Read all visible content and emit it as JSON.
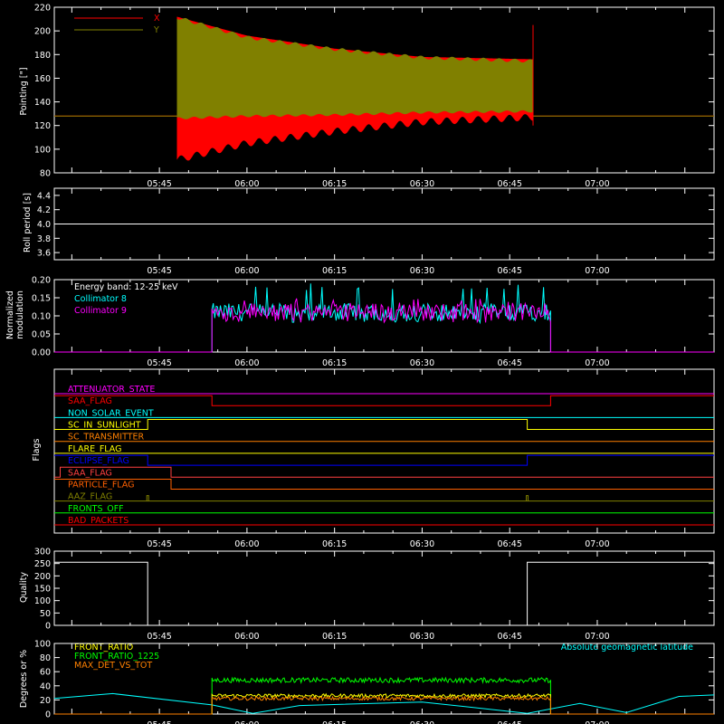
{
  "panels": {
    "pointing": {
      "ylabel": "Pointing [\"]",
      "legend": [
        {
          "label": "X",
          "color": "#ff0000"
        },
        {
          "label": "Y",
          "color": "#808000"
        }
      ]
    },
    "roll": {
      "ylabel": "Roll period [s]"
    },
    "modulation": {
      "ylabel_line1": "Normalized",
      "ylabel_line2": "modulation",
      "annotation": "Energy band: 12-25 keV",
      "legend": [
        {
          "label": "Collimator 8",
          "color": "#00ffff"
        },
        {
          "label": "Collimator 9",
          "color": "#ff00ff"
        }
      ]
    },
    "flags": {
      "ylabel": "Flags"
    },
    "quality": {
      "ylabel": "Quality"
    },
    "ratios": {
      "ylabel": "Degrees or %",
      "legend": [
        {
          "label": "FRONT_RATIO",
          "color": "#ffff00"
        },
        {
          "label": "FRONT_RATIO_1225",
          "color": "#00ff00"
        },
        {
          "label": "MAX_DET_VS_TOT",
          "color": "#ff8000"
        }
      ],
      "right_label": "Absolute geomagnetic latitude",
      "right_label_color": "#00ffff"
    }
  },
  "chart_data": [
    {
      "type": "area",
      "ylabel": "Pointing [\"]",
      "xlim": [
        "05:27",
        "07:20"
      ],
      "ylim": [
        80,
        220
      ],
      "x_ticks": [
        "05:45",
        "06:00",
        "06:15",
        "06:30",
        "06:45",
        "07:00"
      ],
      "y_ticks": [
        80,
        100,
        120,
        140,
        160,
        180,
        200,
        220
      ],
      "grid": false,
      "legend_position": "top-left",
      "series": [
        {
          "name": "X",
          "color": "#ff0000",
          "baseline": 128,
          "active_from": "05:48",
          "active_to": "06:49",
          "envelope": [
            {
              "t": "05:48",
              "min": 88,
              "max": 212
            },
            {
              "t": "06:00",
              "min": 102,
              "max": 196
            },
            {
              "t": "06:15",
              "min": 112,
              "max": 185
            },
            {
              "t": "06:30",
              "min": 120,
              "max": 178
            },
            {
              "t": "06:49",
              "min": 124,
              "max": 176
            }
          ]
        },
        {
          "name": "Y",
          "color": "#808000",
          "baseline": 128,
          "active_from": "05:48",
          "active_to": "06:49",
          "envelope": [
            {
              "t": "05:48",
              "min": 125,
              "max": 213
            },
            {
              "t": "06:00",
              "min": 127,
              "max": 196
            },
            {
              "t": "06:15",
              "min": 128,
              "max": 186
            },
            {
              "t": "06:30",
              "min": 130,
              "max": 179
            },
            {
              "t": "06:49",
              "min": 131,
              "max": 176
            }
          ]
        }
      ]
    },
    {
      "type": "line",
      "ylabel": "Roll period [s]",
      "xlim": [
        "05:27",
        "07:20"
      ],
      "ylim": [
        3.5,
        4.5
      ],
      "y_ticks": [
        3.6,
        3.8,
        4.0,
        4.2,
        4.4
      ],
      "x_ticks": [
        "05:45",
        "06:00",
        "06:15",
        "06:30",
        "06:45",
        "07:00"
      ],
      "series": [
        {
          "color": "#ffffff",
          "x": [
            "05:27",
            "07:20"
          ],
          "y": [
            4.0,
            4.0
          ]
        }
      ]
    },
    {
      "type": "line",
      "ylabel": "Normalized modulation",
      "xlim": [
        "05:27",
        "07:20"
      ],
      "ylim": [
        0.0,
        0.2
      ],
      "y_ticks": [
        0.0,
        0.05,
        0.1,
        0.15,
        0.2
      ],
      "x_ticks": [
        "05:45",
        "06:00",
        "06:15",
        "06:30",
        "06:45",
        "07:00"
      ],
      "legend_position": "top-left",
      "series": [
        {
          "name": "Collimator 8",
          "color": "#00ffff",
          "active_from": "05:54",
          "active_to": "06:52",
          "mean": 0.11,
          "min": 0.08,
          "max": 0.19
        },
        {
          "name": "Collimator 9",
          "color": "#ff00ff",
          "active_from": "05:54",
          "active_to": "06:52",
          "mean": 0.11,
          "min": 0.08,
          "max": 0.15
        }
      ]
    },
    {
      "type": "line",
      "ylabel": "Flags",
      "xlim": [
        "05:27",
        "07:20"
      ],
      "x_ticks": [
        "05:45",
        "06:00",
        "06:15",
        "06:30",
        "06:45",
        "07:00"
      ],
      "series": [
        {
          "name": "ATTENUATOR_STATE",
          "color": "#ff00ff",
          "segments": [
            {
              "from": "05:27",
              "to": "07:20",
              "state": 0
            }
          ]
        },
        {
          "name": "SAA_FLAG",
          "color": "#ff0000",
          "segments": [
            {
              "from": "05:27",
              "to": "05:54",
              "state": 1
            },
            {
              "from": "05:54",
              "to": "06:52",
              "state": 0
            },
            {
              "from": "06:52",
              "to": "07:20",
              "state": 1
            }
          ]
        },
        {
          "name": "NON_SOLAR_EVENT",
          "color": "#00ffff",
          "segments": [
            {
              "from": "05:27",
              "to": "07:20",
              "state": 0
            }
          ]
        },
        {
          "name": "SC_IN_SUNLIGHT",
          "color": "#ffff00",
          "segments": [
            {
              "from": "05:27",
              "to": "05:43",
              "state": 0
            },
            {
              "from": "05:43",
              "to": "06:48",
              "state": 1
            },
            {
              "from": "06:48",
              "to": "07:20",
              "state": 0
            }
          ]
        },
        {
          "name": "SC_TRANSMITTER",
          "color": "#ff8000",
          "segments": [
            {
              "from": "05:27",
              "to": "07:20",
              "state": 0
            }
          ]
        },
        {
          "name": "FLARE_FLAG",
          "color": "#ffff00",
          "segments": [
            {
              "from": "05:27",
              "to": "07:20",
              "state": 0
            }
          ]
        },
        {
          "name": "ECLIPSE_FLAG",
          "color": "#0000ff",
          "segments": [
            {
              "from": "05:27",
              "to": "05:43",
              "state": 1
            },
            {
              "from": "05:43",
              "to": "06:48",
              "state": 0
            },
            {
              "from": "06:48",
              "to": "07:20",
              "state": 1
            }
          ]
        },
        {
          "name": "SAA_FLAG",
          "color": "#ff4040",
          "segments": [
            {
              "from": "05:27",
              "to": "05:28",
              "state": 0
            },
            {
              "from": "05:28",
              "to": "05:47",
              "state": 1
            },
            {
              "from": "05:47",
              "to": "07:20",
              "state": 0
            }
          ]
        },
        {
          "name": "PARTICLE_FLAG",
          "color": "#ff6000",
          "segments": [
            {
              "from": "05:27",
              "to": "05:47",
              "state": 1
            },
            {
              "from": "05:47",
              "to": "07:20",
              "state": 0
            }
          ]
        },
        {
          "name": "AAZ_FLAG",
          "color": "#808000",
          "segments": [
            {
              "from": "05:27",
              "to": "07:20",
              "state": 0
            }
          ],
          "spikes": [
            "05:43",
            "06:48"
          ]
        },
        {
          "name": "FRONTS_OFF",
          "color": "#00ff00",
          "segments": [
            {
              "from": "05:27",
              "to": "07:20",
              "state": 0
            }
          ]
        },
        {
          "name": "BAD_PACKETS",
          "color": "#ff0000",
          "segments": [
            {
              "from": "05:27",
              "to": "07:20",
              "state": 0
            }
          ]
        }
      ]
    },
    {
      "type": "line",
      "ylabel": "Quality",
      "xlim": [
        "05:27",
        "07:20"
      ],
      "ylim": [
        0,
        300
      ],
      "y_ticks": [
        0,
        50,
        100,
        150,
        200,
        250,
        300
      ],
      "x_ticks": [
        "05:45",
        "06:00",
        "06:15",
        "06:30",
        "06:45",
        "07:00"
      ],
      "series": [
        {
          "color": "#ffffff",
          "x": [
            "05:27",
            "05:43",
            "05:43",
            "06:48",
            "06:48",
            "07:20"
          ],
          "y": [
            255,
            255,
            0,
            0,
            255,
            255
          ]
        }
      ]
    },
    {
      "type": "line",
      "ylabel": "Degrees or %",
      "xlim": [
        "05:27",
        "07:20"
      ],
      "ylim": [
        0,
        100
      ],
      "y_ticks": [
        0,
        20,
        40,
        60,
        80,
        100
      ],
      "legend_position": "top-left",
      "series": [
        {
          "name": "FRONT_RATIO",
          "color": "#ffff00",
          "active_from": "05:54",
          "active_to": "06:52",
          "mean": 26
        },
        {
          "name": "FRONT_RATIO_1225",
          "color": "#00ff00",
          "active_from": "05:54",
          "active_to": "06:52",
          "mean": 48
        },
        {
          "name": "MAX_DET_VS_TOT",
          "color": "#ff8000",
          "active_from": "05:54",
          "active_to": "06:52",
          "mean": 22
        },
        {
          "name": "Absolute geomagnetic latitude",
          "color": "#00ffff",
          "x": [
            "05:27",
            "05:37",
            "05:54",
            "06:01",
            "06:09",
            "06:30",
            "06:48",
            "06:57",
            "07:05",
            "07:14",
            "07:20"
          ],
          "y": [
            22,
            29,
            13,
            1,
            12,
            17,
            1,
            15,
            2,
            25,
            27
          ]
        }
      ]
    }
  ]
}
